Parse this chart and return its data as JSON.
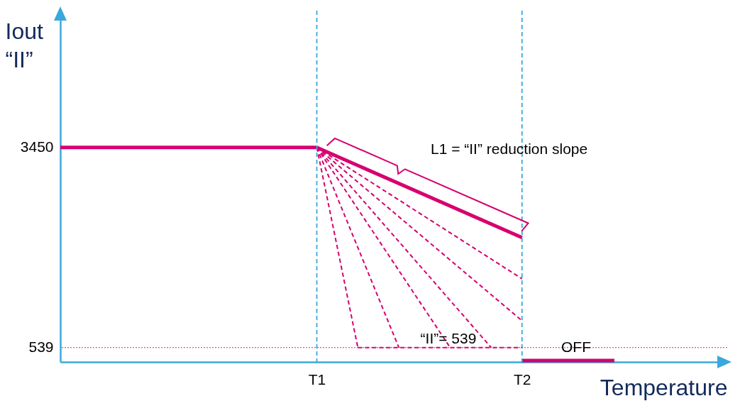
{
  "chart_data": {
    "type": "line",
    "xlabel": "Temperature",
    "ylabel": "Iout\n“II”",
    "categories": [
      null,
      null,
      null,
      null,
      null,
      null,
      null,
      null,
      null,
      null,
      null,
      null,
      null,
      null,
      null,
      null,
      null,
      null,
      null,
      null,
      null,
      null,
      null,
      null,
      null,
      "T1",
      null,
      null,
      null,
      null,
      null,
      null,
      null,
      null,
      null,
      null,
      null,
      null,
      null,
      null,
      null,
      null,
      null,
      null,
      null,
      "T2",
      null,
      null,
      null,
      null,
      null,
      null,
      null,
      null,
      null,
      null,
      null,
      null,
      null,
      null,
      null,
      null,
      null,
      null,
      null,
      null
    ],
    "ylim": [
      330,
      5440
    ],
    "yticks": [
      539,
      3450
    ],
    "grid": false,
    "series": [
      {
        "color": "#d6006f",
        "line_style": "solid",
        "values": [
          3450,
          null,
          null,
          null,
          null,
          null,
          null,
          null,
          null,
          null,
          null,
          null,
          null,
          null,
          null,
          null,
          null,
          null,
          null,
          null,
          null,
          null,
          null,
          null,
          null,
          3450,
          null,
          null,
          null,
          null,
          null,
          null,
          null,
          null,
          null,
          null,
          null,
          null,
          null,
          null,
          null,
          null,
          null,
          null,
          null,
          2140,
          null,
          null,
          null,
          null,
          null,
          null,
          null,
          null,
          null,
          null,
          null,
          null,
          null,
          null,
          null,
          null,
          null,
          null,
          null,
          null
        ]
      },
      {
        "color": "#d6006f",
        "line_style": "dashed",
        "values": [
          null,
          null,
          null,
          null,
          null,
          null,
          null,
          null,
          null,
          null,
          null,
          null,
          null,
          null,
          null,
          null,
          null,
          null,
          null,
          null,
          null,
          null,
          null,
          null,
          null,
          3450,
          null,
          null,
          null,
          null,
          null,
          null,
          null,
          null,
          null,
          null,
          null,
          null,
          null,
          null,
          null,
          null,
          null,
          null,
          null,
          1540,
          null,
          null,
          null,
          null,
          null,
          null,
          null,
          null,
          null,
          null,
          null,
          null,
          null,
          null,
          null,
          null,
          null,
          null,
          null,
          null
        ]
      },
      {
        "color": "#d6006f",
        "line_style": "dashed",
        "values": [
          null,
          null,
          null,
          null,
          null,
          null,
          null,
          null,
          null,
          null,
          null,
          null,
          null,
          null,
          null,
          null,
          null,
          null,
          null,
          null,
          null,
          null,
          null,
          null,
          null,
          3450,
          null,
          null,
          null,
          null,
          null,
          null,
          null,
          null,
          null,
          null,
          null,
          null,
          null,
          null,
          null,
          null,
          null,
          null,
          null,
          930,
          null,
          null,
          null,
          null,
          null,
          null,
          null,
          null,
          null,
          null,
          null,
          null,
          null,
          null,
          null,
          null,
          null,
          null,
          null,
          null
        ]
      },
      {
        "color": "#d6006f",
        "line_style": "dashed",
        "values": [
          null,
          null,
          null,
          null,
          null,
          null,
          null,
          null,
          null,
          null,
          null,
          null,
          null,
          null,
          null,
          null,
          null,
          null,
          null,
          null,
          null,
          null,
          null,
          null,
          null,
          3450,
          null,
          null,
          null,
          null,
          null,
          null,
          null,
          null,
          null,
          null,
          null,
          null,
          null,
          null,
          null,
          null,
          539,
          null,
          null,
          null,
          null,
          null,
          null,
          null,
          null,
          null,
          null,
          null,
          null,
          null,
          null,
          null,
          null,
          null,
          null,
          null,
          null,
          null,
          null,
          null
        ]
      },
      {
        "color": "#d6006f",
        "line_style": "dashed",
        "values": [
          null,
          null,
          null,
          null,
          null,
          null,
          null,
          null,
          null,
          null,
          null,
          null,
          null,
          null,
          null,
          null,
          null,
          null,
          null,
          null,
          null,
          null,
          null,
          null,
          null,
          3450,
          null,
          null,
          null,
          null,
          null,
          null,
          null,
          null,
          null,
          null,
          null,
          null,
          539,
          null,
          null,
          null,
          null,
          null,
          null,
          null,
          null,
          null,
          null,
          null,
          null,
          null,
          null,
          null,
          null,
          null,
          null,
          null,
          null,
          null,
          null,
          null,
          null,
          null,
          null,
          null
        ]
      },
      {
        "color": "#d6006f",
        "line_style": "dashed",
        "values": [
          null,
          null,
          null,
          null,
          null,
          null,
          null,
          null,
          null,
          null,
          null,
          null,
          null,
          null,
          null,
          null,
          null,
          null,
          null,
          null,
          null,
          null,
          null,
          null,
          null,
          3450,
          null,
          null,
          null,
          null,
          null,
          null,
          null,
          539,
          null,
          null,
          null,
          null,
          null,
          null,
          null,
          null,
          null,
          null,
          null,
          null,
          null,
          null,
          null,
          null,
          null,
          null,
          null,
          null,
          null,
          null,
          null,
          null,
          null,
          null,
          null,
          null,
          null,
          null,
          null,
          null
        ]
      },
      {
        "color": "#d6006f",
        "line_style": "dashed",
        "values": [
          null,
          null,
          null,
          null,
          null,
          null,
          null,
          null,
          null,
          null,
          null,
          null,
          null,
          null,
          null,
          null,
          null,
          null,
          null,
          null,
          null,
          null,
          null,
          null,
          null,
          3450,
          null,
          null,
          null,
          539,
          null,
          null,
          null,
          null,
          null,
          null,
          null,
          null,
          null,
          null,
          null,
          null,
          null,
          null,
          null,
          null,
          null,
          null,
          null,
          null,
          null,
          null,
          null,
          null,
          null,
          null,
          null,
          null,
          null,
          null,
          null,
          null,
          null,
          null,
          null,
          null
        ]
      },
      {
        "color": "#d6006f",
        "line_style": "dashed",
        "values": [
          null,
          null,
          null,
          null,
          null,
          null,
          null,
          null,
          null,
          null,
          null,
          null,
          null,
          null,
          null,
          null,
          null,
          null,
          null,
          null,
          null,
          null,
          null,
          null,
          null,
          null,
          null,
          null,
          null,
          539,
          null,
          null,
          null,
          null,
          null,
          null,
          null,
          null,
          null,
          null,
          null,
          null,
          null,
          null,
          null,
          539,
          null,
          null,
          null,
          null,
          null,
          null,
          null,
          null,
          null,
          null,
          null,
          null,
          null,
          null,
          null,
          null,
          null,
          null,
          null,
          null
        ]
      },
      {
        "color": "#d6006f",
        "line_style": "solid",
        "values": [
          null,
          null,
          null,
          null,
          null,
          null,
          null,
          null,
          null,
          null,
          null,
          null,
          null,
          null,
          null,
          null,
          null,
          null,
          null,
          null,
          null,
          null,
          null,
          null,
          null,
          null,
          null,
          null,
          null,
          null,
          null,
          null,
          null,
          null,
          null,
          null,
          null,
          null,
          null,
          null,
          null,
          null,
          null,
          null,
          null,
          350,
          null,
          null,
          null,
          null,
          null,
          null,
          null,
          null,
          350,
          null,
          null,
          null,
          null,
          null,
          null,
          null,
          null,
          null,
          null,
          null
        ]
      }
    ],
    "ref_lines": [
      {
        "axis": "x",
        "value": "T1",
        "color": "#3aa8dc",
        "line_style": "dashed"
      },
      {
        "axis": "x",
        "value": "T2",
        "color": "#3aa8dc",
        "line_style": "dashed"
      },
      {
        "axis": "y",
        "value": 539,
        "color": "#e8197f",
        "line_style": "dotted"
      }
    ],
    "annotations": [
      "L1 = “II” reduction slope",
      "“II”= 539",
      "OFF"
    ]
  }
}
